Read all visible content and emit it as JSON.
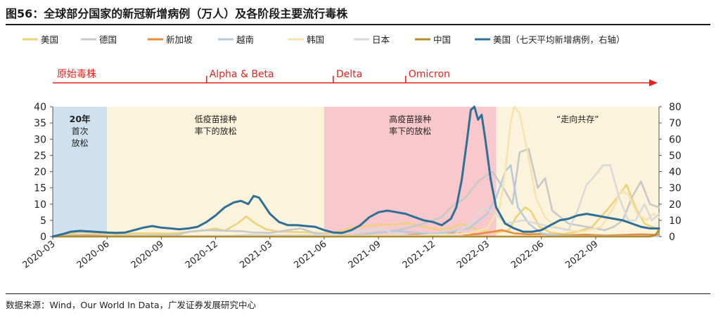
{
  "figure": {
    "title": "图56：全球部分国家的新冠新增病例（万人）及各阶段主要流行毒株",
    "source": "数据来源：Wind，Our World In Data，广发证券发展研究中心"
  },
  "colors": {
    "phase_relax_2020": "#cfe0ee",
    "phase_wild": "#fbf3dc",
    "phase_high_vax": "#f9c8cc",
    "phase_coexist": "#fbf3dc",
    "timeline": "#e8221b"
  },
  "chart_data": {
    "type": "line",
    "x_type": "month",
    "xlim": [
      "2020-03",
      "2022-12"
    ],
    "ylim": [
      0,
      40
    ],
    "y2lim": [
      0,
      80
    ],
    "yticks": [
      0,
      5,
      10,
      15,
      20,
      25,
      30,
      35,
      40
    ],
    "y2ticks": [
      0,
      10,
      20,
      30,
      40,
      50,
      60,
      70,
      80
    ],
    "xticks": [
      "2020-03",
      "2020-06",
      "2020-09",
      "2020-12",
      "2021-03",
      "2021-06",
      "2021-09",
      "2021-12",
      "2022-03",
      "2022-06",
      "2022-09"
    ],
    "legend_position": "top",
    "phases": [
      {
        "start": 0.0,
        "end": 3.0,
        "label_lines": [
          "20年",
          "首次",
          "放松"
        ],
        "color_key": "phase_relax_2020"
      },
      {
        "start": 3.0,
        "end": 15.0,
        "label_lines": [
          "低疫苗接种",
          "率下的放松"
        ],
        "color_key": "phase_wild"
      },
      {
        "start": 15.0,
        "end": 24.5,
        "label_lines": [
          "高疫苗接种",
          "率下的放松"
        ],
        "color_key": "phase_high_vax"
      },
      {
        "start": 24.5,
        "end": 33.5,
        "label_lines": [
          "“走向共存”"
        ],
        "color_key": "phase_coexist"
      }
    ],
    "strains": [
      {
        "label": "原始毒株",
        "at": 0.0
      },
      {
        "label": "Alpha & Beta",
        "at": 8.5
      },
      {
        "label": "Delta",
        "at": 15.5
      },
      {
        "label": "Omicron",
        "at": 19.5
      }
    ],
    "series": [
      {
        "name": "美国",
        "axis": "left",
        "color": "#ecd27a",
        "points": [
          [
            0,
            0
          ],
          [
            0.7,
            0.5
          ],
          [
            1.5,
            1.5
          ],
          [
            2.5,
            1
          ],
          [
            3.5,
            0.8
          ],
          [
            4.5,
            1
          ],
          [
            5.5,
            1
          ],
          [
            6.5,
            0.9
          ],
          [
            7.5,
            1.4
          ],
          [
            8.5,
            2
          ],
          [
            9,
            2.5
          ],
          [
            9.5,
            1.8
          ],
          [
            10.2,
            4
          ],
          [
            10.7,
            6.2
          ],
          [
            11.2,
            4
          ],
          [
            11.8,
            2.2
          ],
          [
            12.5,
            1.5
          ],
          [
            13.5,
            1.4
          ],
          [
            14.5,
            1.2
          ],
          [
            15,
            0.9
          ],
          [
            15.5,
            1.1
          ],
          [
            16.3,
            2.5
          ],
          [
            17.2,
            3.2
          ],
          [
            18.2,
            3.7
          ],
          [
            19,
            3.8
          ],
          [
            19.7,
            4.2
          ],
          [
            20.5,
            3
          ],
          [
            21.3,
            2.2
          ],
          [
            22,
            2.5
          ],
          [
            22.5,
            4
          ],
          [
            23,
            3.2
          ],
          [
            23.5,
            2
          ],
          [
            24.5,
            1.2
          ],
          [
            25.2,
            2
          ],
          [
            25.6,
            6
          ],
          [
            26.1,
            9
          ],
          [
            26.4,
            8
          ],
          [
            26.9,
            3
          ],
          [
            27.5,
            1.2
          ],
          [
            28.2,
            0.8
          ],
          [
            29,
            1.5
          ],
          [
            29.8,
            3
          ],
          [
            30.6,
            8
          ],
          [
            31.2,
            12
          ],
          [
            31.7,
            16
          ],
          [
            32.2,
            9
          ],
          [
            32.7,
            4
          ],
          [
            33.1,
            3
          ],
          [
            33.5,
            2
          ]
        ]
      },
      {
        "name": "德国",
        "axis": "left",
        "color": "#c8c8c8",
        "points": [
          [
            0,
            0
          ],
          [
            1,
            0.4
          ],
          [
            2,
            0.4
          ],
          [
            3,
            0.2
          ],
          [
            4,
            0.3
          ],
          [
            5,
            0.3
          ],
          [
            6,
            0.4
          ],
          [
            7,
            0.6
          ],
          [
            7.5,
            1.5
          ],
          [
            8.5,
            2
          ],
          [
            9.5,
            1.8
          ],
          [
            10.5,
            1.6
          ],
          [
            11,
            1.3
          ],
          [
            12,
            1.1
          ],
          [
            13,
            2
          ],
          [
            13.7,
            2.5
          ],
          [
            14.5,
            1
          ],
          [
            15.5,
            0.3
          ],
          [
            16.5,
            0.3
          ],
          [
            17.5,
            1
          ],
          [
            18.5,
            1.5
          ],
          [
            19.5,
            2.5
          ],
          [
            20.5,
            4
          ],
          [
            21.5,
            6
          ],
          [
            22,
            9
          ],
          [
            22.8,
            12
          ],
          [
            23.5,
            17
          ],
          [
            24.3,
            20
          ],
          [
            25,
            14
          ],
          [
            25.4,
            10
          ],
          [
            25.8,
            26
          ],
          [
            26.3,
            27
          ],
          [
            26.8,
            15
          ],
          [
            27.2,
            18
          ],
          [
            27.6,
            8
          ],
          [
            28.5,
            4
          ],
          [
            29.5,
            3
          ],
          [
            30.5,
            2
          ],
          [
            31,
            3
          ],
          [
            31.5,
            5
          ],
          [
            32,
            12
          ],
          [
            32.5,
            17
          ],
          [
            33,
            10
          ],
          [
            33.5,
            9
          ]
        ]
      },
      {
        "name": "新加坡",
        "axis": "left",
        "color": "#e98a3c",
        "points": [
          [
            0,
            0
          ],
          [
            2,
            0.3
          ],
          [
            3,
            0.1
          ],
          [
            15,
            0
          ],
          [
            18.5,
            0.2
          ],
          [
            19.5,
            0.5
          ],
          [
            20.5,
            0.7
          ],
          [
            21.5,
            0.4
          ],
          [
            22.3,
            1.2
          ],
          [
            22.8,
            0.6
          ],
          [
            23.5,
            0.8
          ],
          [
            24.3,
            1.5
          ],
          [
            24.8,
            2
          ],
          [
            25.5,
            1
          ],
          [
            26.3,
            0.7
          ],
          [
            27,
            0.8
          ],
          [
            27.8,
            0.5
          ],
          [
            28.5,
            0.4
          ],
          [
            29.5,
            0.6
          ],
          [
            30.5,
            0.3
          ],
          [
            31.5,
            0.5
          ],
          [
            32.5,
            0.7
          ],
          [
            33.5,
            0.5
          ]
        ]
      },
      {
        "name": "越南",
        "axis": "left",
        "color": "#b6cbdc",
        "points": [
          [
            0,
            0
          ],
          [
            16,
            0
          ],
          [
            17,
            0.3
          ],
          [
            18,
            1.2
          ],
          [
            19,
            1.8
          ],
          [
            19.7,
            1.4
          ],
          [
            20.5,
            1
          ],
          [
            21,
            0.8
          ],
          [
            22,
            1.5
          ],
          [
            23,
            2.5
          ],
          [
            24,
            7
          ],
          [
            24.5,
            12
          ],
          [
            25,
            20
          ],
          [
            25.3,
            22
          ],
          [
            25.7,
            9
          ],
          [
            26.3,
            4
          ],
          [
            27,
            1
          ],
          [
            28,
            0.3
          ],
          [
            29,
            0.1
          ],
          [
            33.5,
            0.1
          ]
        ]
      },
      {
        "name": "韩国",
        "axis": "left",
        "color": "#f5e4b0",
        "points": [
          [
            0,
            0
          ],
          [
            9,
            0
          ],
          [
            12,
            0.1
          ],
          [
            15,
            0.1
          ],
          [
            17,
            0.2
          ],
          [
            19,
            0.3
          ],
          [
            20,
            0.3
          ],
          [
            21,
            0.5
          ],
          [
            22,
            0.7
          ],
          [
            23,
            1
          ],
          [
            24,
            2.5
          ],
          [
            24.7,
            9
          ],
          [
            25,
            20
          ],
          [
            25.3,
            35
          ],
          [
            25.5,
            40
          ],
          [
            25.8,
            38
          ],
          [
            26.2,
            27
          ],
          [
            26.7,
            12
          ],
          [
            27.2,
            6
          ],
          [
            27.8,
            3
          ],
          [
            28.5,
            2
          ],
          [
            29.2,
            1.5
          ],
          [
            30.3,
            3
          ],
          [
            31,
            9
          ],
          [
            31.4,
            14
          ],
          [
            31.8,
            13
          ],
          [
            32.3,
            7
          ],
          [
            32.8,
            5
          ],
          [
            33.2,
            7
          ],
          [
            33.5,
            6
          ]
        ]
      },
      {
        "name": "日本",
        "axis": "left",
        "color": "#dadada",
        "points": [
          [
            0,
            0
          ],
          [
            8,
            0.1
          ],
          [
            10,
            0.3
          ],
          [
            11,
            0.6
          ],
          [
            12,
            0.4
          ],
          [
            14,
            0.5
          ],
          [
            15,
            0.4
          ],
          [
            17.5,
            2
          ],
          [
            18.2,
            2.5
          ],
          [
            18.8,
            1
          ],
          [
            20,
            0.1
          ],
          [
            22,
            0.2
          ],
          [
            23,
            3.5
          ],
          [
            23.8,
            9
          ],
          [
            24.5,
            7
          ],
          [
            25,
            4
          ],
          [
            26,
            5
          ],
          [
            27.5,
            3
          ],
          [
            28.5,
            2
          ],
          [
            29,
            8
          ],
          [
            29.5,
            16
          ],
          [
            30,
            19
          ],
          [
            30.4,
            22
          ],
          [
            30.8,
            22
          ],
          [
            31.3,
            12
          ],
          [
            31.8,
            5
          ],
          [
            32.2,
            5
          ],
          [
            32.7,
            10
          ],
          [
            33.1,
            5
          ],
          [
            33.5,
            7
          ]
        ]
      },
      {
        "name": "中国",
        "axis": "left",
        "color": "#b08d2a",
        "points": [
          [
            0,
            0
          ],
          [
            2,
            0
          ],
          [
            33,
            0
          ],
          [
            33.3,
            0.5
          ],
          [
            33.5,
            2
          ]
        ]
      },
      {
        "name": "美国（七天平均新增病例，右轴）",
        "axis": "right",
        "color": "#2f6f95",
        "points": [
          [
            0,
            0
          ],
          [
            0.7,
            2
          ],
          [
            1,
            3
          ],
          [
            1.5,
            3.5
          ],
          [
            2.3,
            3
          ],
          [
            3,
            2.5
          ],
          [
            3.5,
            2.3
          ],
          [
            4,
            2.5
          ],
          [
            4.5,
            4
          ],
          [
            5,
            5.5
          ],
          [
            5.5,
            6.5
          ],
          [
            6,
            5.5
          ],
          [
            6.5,
            5
          ],
          [
            7,
            4.5
          ],
          [
            7.5,
            5
          ],
          [
            8,
            6
          ],
          [
            8.5,
            9
          ],
          [
            9,
            13
          ],
          [
            9.5,
            18
          ],
          [
            10,
            21
          ],
          [
            10.4,
            22
          ],
          [
            10.8,
            20
          ],
          [
            11.1,
            25
          ],
          [
            11.4,
            24
          ],
          [
            11.7,
            19
          ],
          [
            12,
            14
          ],
          [
            12.5,
            9
          ],
          [
            13,
            7
          ],
          [
            13.5,
            7
          ],
          [
            14,
            6.5
          ],
          [
            14.5,
            6
          ],
          [
            15,
            4
          ],
          [
            15.5,
            2.5
          ],
          [
            16,
            2.3
          ],
          [
            16.5,
            4
          ],
          [
            17,
            7
          ],
          [
            17.5,
            12
          ],
          [
            18,
            15
          ],
          [
            18.5,
            16
          ],
          [
            19,
            15
          ],
          [
            19.5,
            14
          ],
          [
            20,
            12
          ],
          [
            20.5,
            10
          ],
          [
            21,
            9
          ],
          [
            21.5,
            7
          ],
          [
            22,
            11
          ],
          [
            22.3,
            18
          ],
          [
            22.6,
            35
          ],
          [
            22.9,
            60
          ],
          [
            23.1,
            78
          ],
          [
            23.3,
            80
          ],
          [
            23.5,
            72
          ],
          [
            23.7,
            75
          ],
          [
            23.9,
            60
          ],
          [
            24.2,
            35
          ],
          [
            24.5,
            18
          ],
          [
            25,
            8
          ],
          [
            25.5,
            5
          ],
          [
            26,
            3
          ],
          [
            26.5,
            3
          ],
          [
            27,
            4
          ],
          [
            27.5,
            7
          ],
          [
            28,
            10
          ],
          [
            28.5,
            11
          ],
          [
            29,
            13
          ],
          [
            29.5,
            14
          ],
          [
            30,
            13
          ],
          [
            30.5,
            12
          ],
          [
            31,
            11
          ],
          [
            31.5,
            10
          ],
          [
            32,
            8
          ],
          [
            32.5,
            6
          ],
          [
            33,
            5
          ],
          [
            33.5,
            5
          ]
        ]
      }
    ]
  }
}
